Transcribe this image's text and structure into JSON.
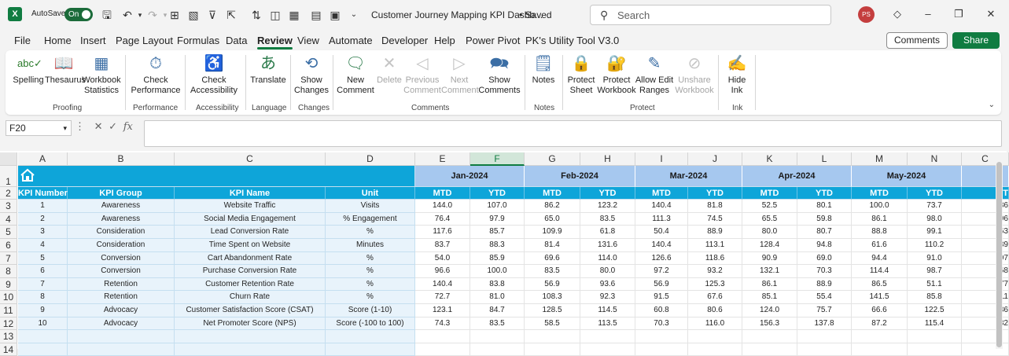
{
  "titlebar": {
    "autosave_label": "AutoSave",
    "autosave_state": "On",
    "doc_title": "Customer Journey Mapping KPI Dashb...",
    "saved_status": "• Saved",
    "search_placeholder": "Search",
    "user_initials": "PS"
  },
  "menu": [
    "File",
    "Home",
    "Insert",
    "Page Layout",
    "Formulas",
    "Data",
    "Review",
    "View",
    "Automate",
    "Developer",
    "Help",
    "Power Pivot",
    "PK's Utility Tool V3.0"
  ],
  "menu_active": "Review",
  "actions": {
    "comments": "Comments",
    "share": "Share"
  },
  "ribbon": {
    "spelling": "Spelling",
    "thesaurus": "Thesaurus",
    "workbook_statistics": "Workbook Statistics",
    "proofing": "Proofing",
    "check_performance": "Check Performance",
    "performance": "Performance",
    "check_accessibility": "Check Accessibility",
    "accessibility": "Accessibility",
    "translate": "Translate",
    "language": "Language",
    "show_changes": "Show Changes",
    "changes": "Changes",
    "new_comment": "New Comment",
    "delete": "Delete",
    "previous_comment": "Previous Comment",
    "next_comment": "Next Comment",
    "show_comments": "Show Comments",
    "comments_group": "Comments",
    "notes": "Notes",
    "notes_group": "Notes",
    "protect_sheet": "Protect Sheet",
    "protect_workbook": "Protect Workbook",
    "allow_edit_ranges": "Allow Edit Ranges",
    "unshare_workbook": "Unshare Workbook",
    "protect_group": "Protect",
    "hide_ink": "Hide Ink",
    "ink_group": "Ink"
  },
  "formula_bar": {
    "name_box": "F20",
    "fx": "fx",
    "value": ""
  },
  "columns": [
    "A",
    "B",
    "C",
    "D",
    "E",
    "F",
    "G",
    "H",
    "I",
    "J",
    "K",
    "L",
    "M",
    "N",
    "C"
  ],
  "selected_column": "F",
  "row_numbers": [
    "1",
    "2",
    "3",
    "4",
    "5",
    "6",
    "7",
    "8",
    "9",
    "10",
    "11",
    "12",
    "13",
    "14"
  ],
  "months": [
    "Jan-2024",
    "Feb-2024",
    "Mar-2024",
    "Apr-2024",
    "May-2024"
  ],
  "headers": {
    "kpi_number": "KPI Number",
    "kpi_group": "KPI Group",
    "kpi_name": "KPI Name",
    "unit": "Unit",
    "mtd": "MTD",
    "ytd": "YTD",
    "mtd_partial": "MT"
  },
  "rows": [
    {
      "num": "1",
      "group": "Awareness",
      "name": "Website Traffic",
      "unit": "Visits",
      "values": [
        "144.0",
        "107.0",
        "86.2",
        "123.2",
        "140.4",
        "81.8",
        "52.5",
        "80.1",
        "100.0",
        "73.7"
      ],
      "partial": "86"
    },
    {
      "num": "2",
      "group": "Awareness",
      "name": "Social Media Engagement",
      "unit": "% Engagement",
      "values": [
        "76.4",
        "97.9",
        "65.0",
        "83.5",
        "111.3",
        "74.5",
        "65.5",
        "59.8",
        "86.1",
        "98.0"
      ],
      "partial": "96"
    },
    {
      "num": "3",
      "group": "Consideration",
      "name": "Lead Conversion Rate",
      "unit": "%",
      "values": [
        "117.6",
        "85.7",
        "109.9",
        "61.8",
        "50.4",
        "88.9",
        "80.0",
        "80.7",
        "88.8",
        "99.1"
      ],
      "partial": "63"
    },
    {
      "num": "4",
      "group": "Consideration",
      "name": "Time Spent on Website",
      "unit": "Minutes",
      "values": [
        "83.7",
        "88.3",
        "81.4",
        "131.6",
        "140.4",
        "113.1",
        "128.4",
        "94.8",
        "61.6",
        "110.2"
      ],
      "partial": "89"
    },
    {
      "num": "5",
      "group": "Conversion",
      "name": "Cart Abandonment Rate",
      "unit": "%",
      "values": [
        "54.0",
        "85.9",
        "69.6",
        "114.0",
        "126.6",
        "118.6",
        "90.9",
        "69.0",
        "94.4",
        "91.0"
      ],
      "partial": "97"
    },
    {
      "num": "6",
      "group": "Conversion",
      "name": "Purchase Conversion Rate",
      "unit": "%",
      "values": [
        "96.6",
        "100.0",
        "83.5",
        "80.0",
        "97.2",
        "93.2",
        "132.1",
        "70.3",
        "114.4",
        "98.7"
      ],
      "partial": "68"
    },
    {
      "num": "7",
      "group": "Retention",
      "name": "Customer Retention Rate",
      "unit": "%",
      "values": [
        "140.4",
        "83.8",
        "56.9",
        "93.6",
        "56.9",
        "125.3",
        "86.1",
        "88.9",
        "86.5",
        "51.1"
      ],
      "partial": "77"
    },
    {
      "num": "8",
      "group": "Retention",
      "name": "Churn Rate",
      "unit": "%",
      "values": [
        "72.7",
        "81.0",
        "108.3",
        "92.3",
        "91.5",
        "67.6",
        "85.1",
        "55.4",
        "141.5",
        "85.8"
      ],
      "partial": "11"
    },
    {
      "num": "9",
      "group": "Advocacy",
      "name": "Customer Satisfaction Score (CSAT)",
      "unit": "Score (1-10)",
      "values": [
        "123.1",
        "84.7",
        "128.5",
        "114.5",
        "60.8",
        "80.6",
        "124.0",
        "75.7",
        "66.6",
        "122.5"
      ],
      "partial": "86"
    },
    {
      "num": "10",
      "group": "Advocacy",
      "name": "Net Promoter Score (NPS)",
      "unit": "Score (-100 to 100)",
      "values": [
        "74.3",
        "83.5",
        "58.5",
        "113.5",
        "70.3",
        "116.0",
        "156.3",
        "137.8",
        "87.2",
        "115.4"
      ],
      "partial": "82"
    }
  ],
  "colors": {
    "excel_green": "#107c41",
    "header_blue": "#0ea5d9",
    "month_blue": "#a6c8ef",
    "row_tint": "#e8f3fb"
  }
}
